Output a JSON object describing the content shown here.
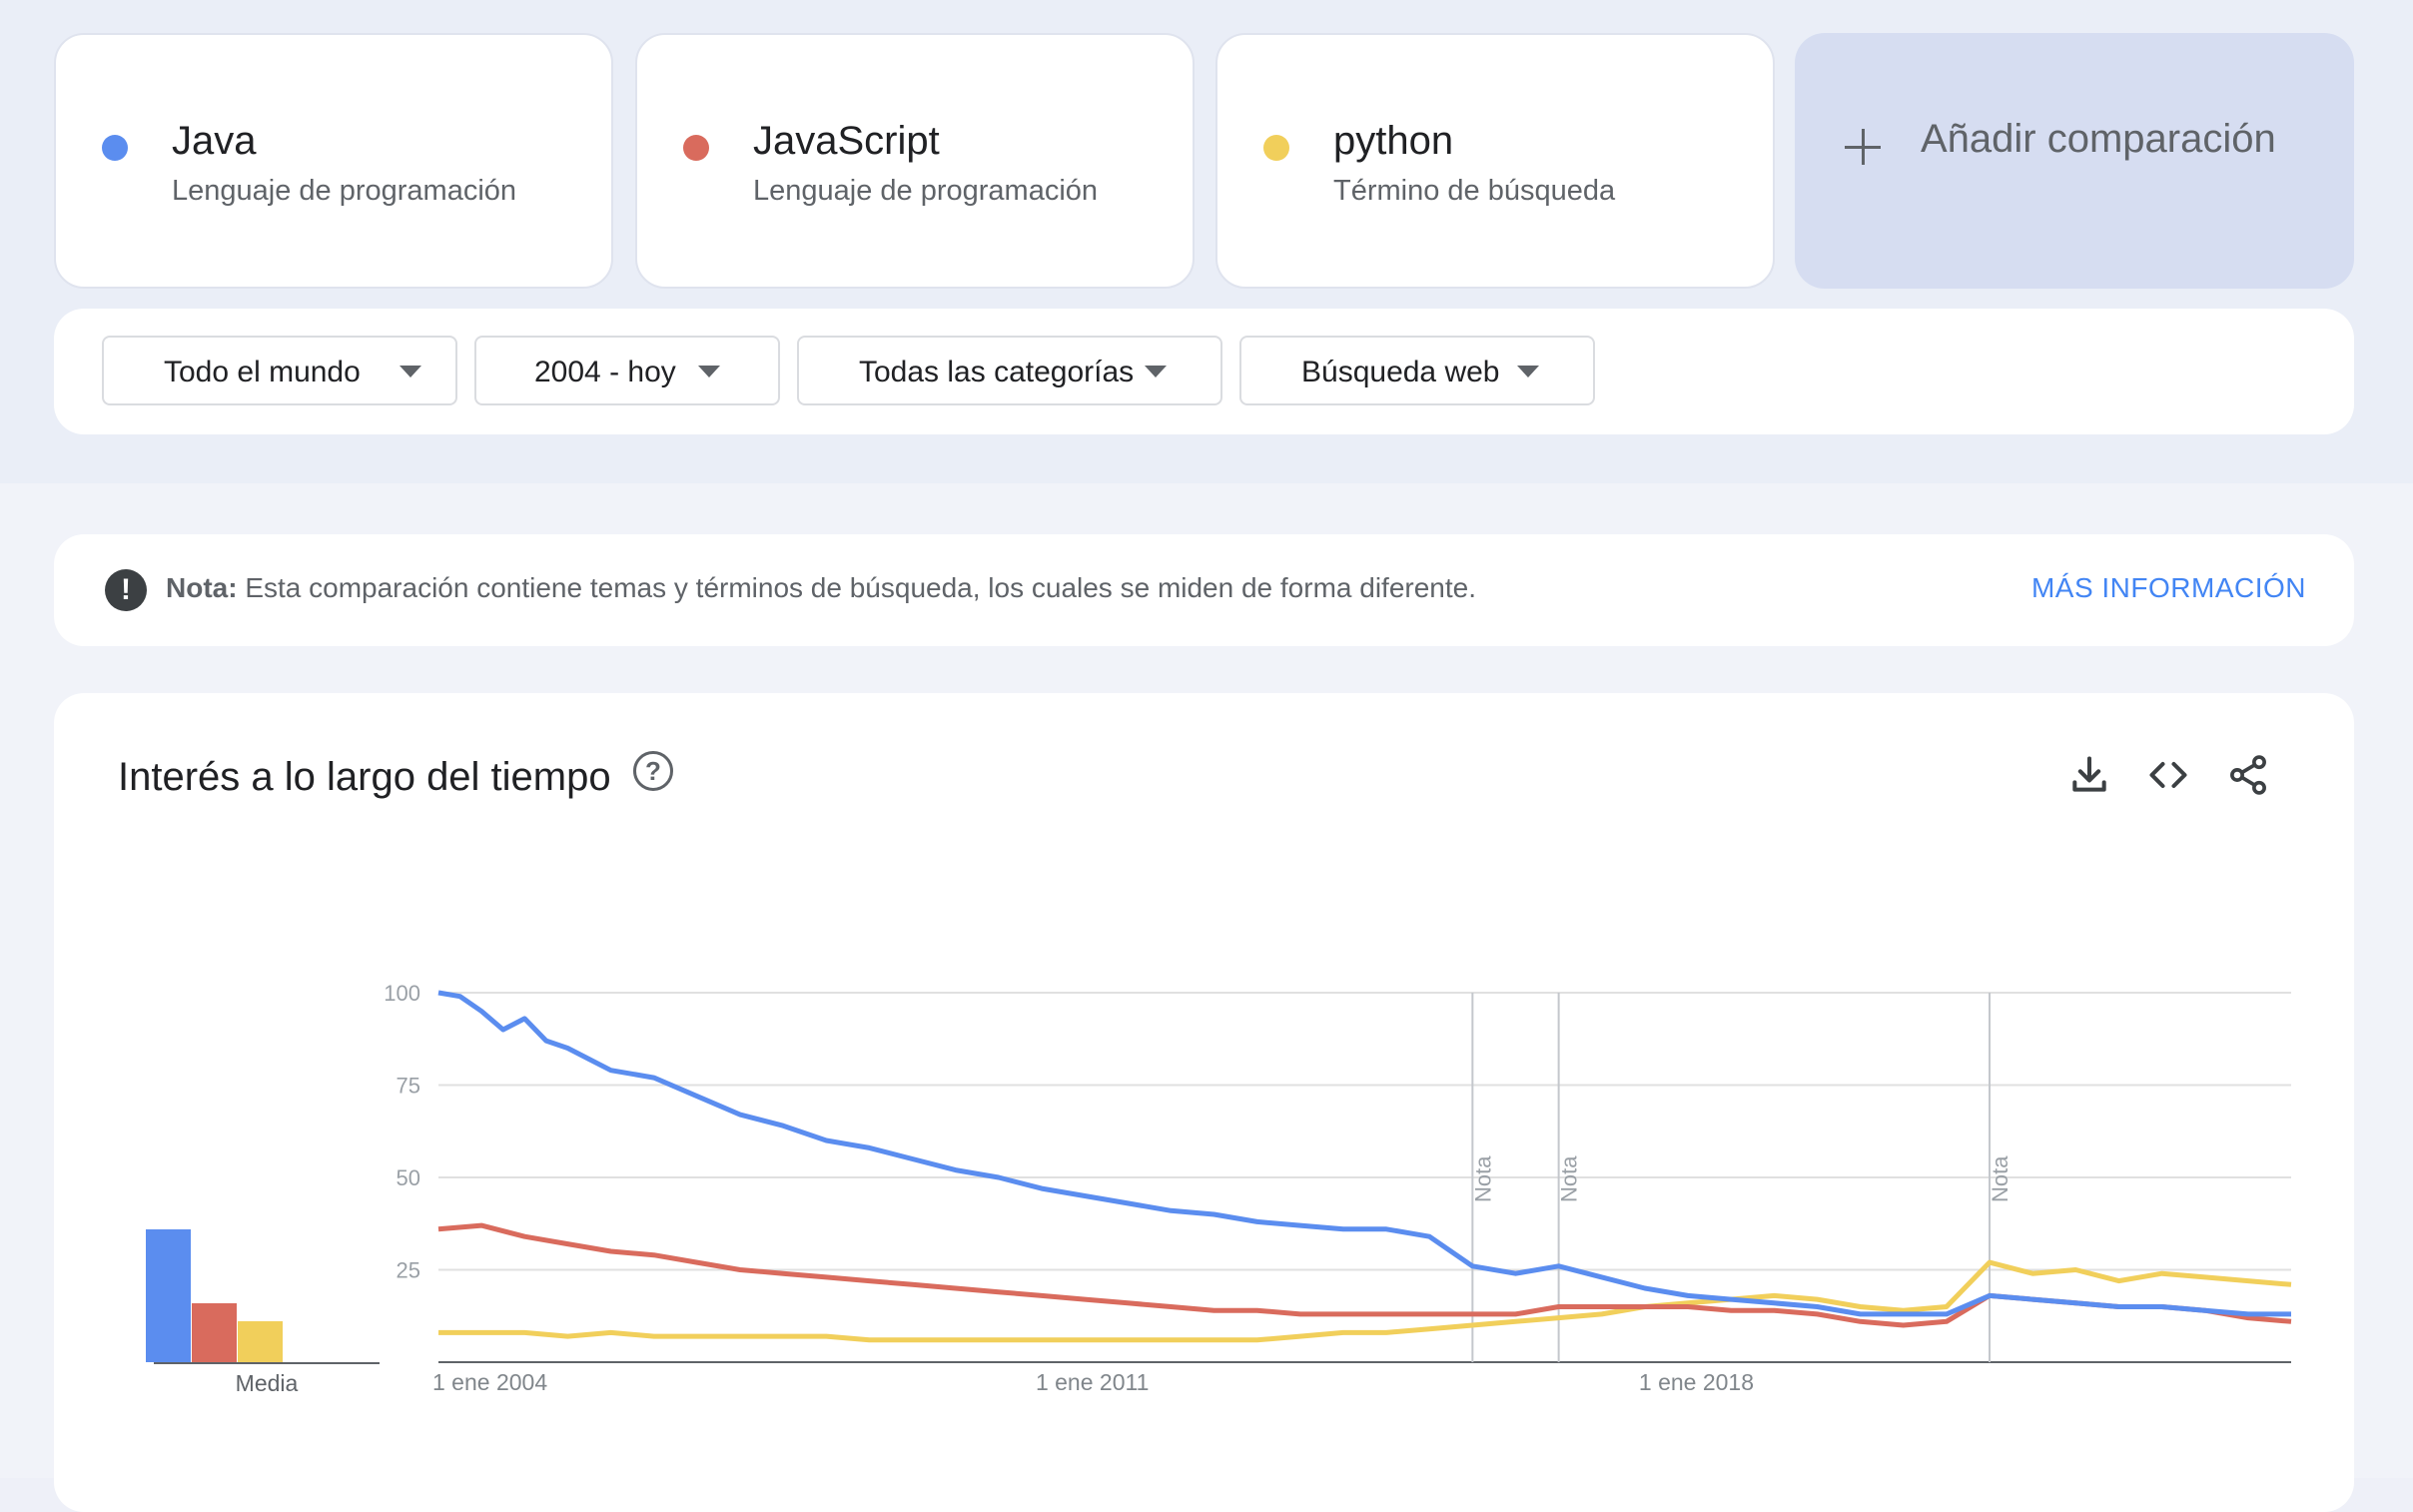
{
  "terms": [
    {
      "name": "Java",
      "subtitle": "Lenguaje de programación",
      "color": "#5b8def"
    },
    {
      "name": "JavaScript",
      "subtitle": "Lenguaje de programación",
      "color": "#d96b5d"
    },
    {
      "name": "python",
      "subtitle": "Término de búsqueda",
      "color": "#f1cf5b"
    }
  ],
  "add_comparison": {
    "label": "Añadir comparación",
    "icon": "plus-icon"
  },
  "filters": {
    "region": "Todo el mundo",
    "period": "2004 - hoy",
    "category": "Todas las categorías",
    "search_type": "Búsqueda web"
  },
  "note": {
    "label": "Nota:",
    "text": "Esta comparación contiene temas y términos de búsqueda, los cuales se miden de forma diferente.",
    "link": "MÁS INFORMACIÓN",
    "icon": "exclamation-icon"
  },
  "chart_panel": {
    "title": "Interés a lo largo del tiempo",
    "icons": [
      "help-icon",
      "download-icon",
      "embed-code-icon",
      "share-icon"
    ]
  },
  "chart_data": {
    "type": "line",
    "x_ticks": [
      "1 ene 2004",
      "1 ene 2011",
      "1 ene 2018"
    ],
    "y_ticks": [
      100,
      75,
      50,
      25
    ],
    "ylim": [
      0,
      100
    ],
    "xlim": [
      2004.0,
      2025.5
    ],
    "grid": true,
    "note_label": "Nota",
    "notes_at": [
      2016.0,
      2017.0,
      2022.0
    ],
    "average_label": "Media",
    "averages": [
      36,
      16,
      11
    ],
    "series": [
      {
        "name": "Java",
        "color": "#5b8def",
        "points": [
          [
            2004.0,
            100
          ],
          [
            2004.25,
            99
          ],
          [
            2004.5,
            95
          ],
          [
            2004.75,
            90
          ],
          [
            2005.0,
            93
          ],
          [
            2005.25,
            87
          ],
          [
            2005.5,
            85
          ],
          [
            2005.75,
            82
          ],
          [
            2006.0,
            79
          ],
          [
            2006.5,
            77
          ],
          [
            2007.0,
            72
          ],
          [
            2007.5,
            67
          ],
          [
            2008.0,
            64
          ],
          [
            2008.5,
            60
          ],
          [
            2009.0,
            58
          ],
          [
            2009.5,
            55
          ],
          [
            2010.0,
            52
          ],
          [
            2010.5,
            50
          ],
          [
            2011.0,
            47
          ],
          [
            2011.5,
            45
          ],
          [
            2012.0,
            43
          ],
          [
            2012.5,
            41
          ],
          [
            2013.0,
            40
          ],
          [
            2013.5,
            38
          ],
          [
            2014.0,
            37
          ],
          [
            2014.5,
            36
          ],
          [
            2015.0,
            36
          ],
          [
            2015.5,
            34
          ],
          [
            2016.0,
            26
          ],
          [
            2016.5,
            24
          ],
          [
            2017.0,
            26
          ],
          [
            2017.5,
            23
          ],
          [
            2018.0,
            20
          ],
          [
            2018.5,
            18
          ],
          [
            2019.0,
            17
          ],
          [
            2019.5,
            16
          ],
          [
            2020.0,
            15
          ],
          [
            2020.5,
            13
          ],
          [
            2021.0,
            13
          ],
          [
            2021.5,
            13
          ],
          [
            2022.0,
            18
          ],
          [
            2022.5,
            17
          ],
          [
            2023.0,
            16
          ],
          [
            2023.5,
            15
          ],
          [
            2024.0,
            15
          ],
          [
            2024.5,
            14
          ],
          [
            2025.0,
            13
          ],
          [
            2025.5,
            13
          ]
        ]
      },
      {
        "name": "JavaScript",
        "color": "#d96b5d",
        "points": [
          [
            2004.0,
            36
          ],
          [
            2004.5,
            37
          ],
          [
            2005.0,
            34
          ],
          [
            2005.5,
            32
          ],
          [
            2006.0,
            30
          ],
          [
            2006.5,
            29
          ],
          [
            2007.0,
            27
          ],
          [
            2007.5,
            25
          ],
          [
            2008.0,
            24
          ],
          [
            2008.5,
            23
          ],
          [
            2009.0,
            22
          ],
          [
            2009.5,
            21
          ],
          [
            2010.0,
            20
          ],
          [
            2010.5,
            19
          ],
          [
            2011.0,
            18
          ],
          [
            2011.5,
            17
          ],
          [
            2012.0,
            16
          ],
          [
            2012.5,
            15
          ],
          [
            2013.0,
            14
          ],
          [
            2013.5,
            14
          ],
          [
            2014.0,
            13
          ],
          [
            2014.5,
            13
          ],
          [
            2015.0,
            13
          ],
          [
            2015.5,
            13
          ],
          [
            2016.0,
            13
          ],
          [
            2016.5,
            13
          ],
          [
            2017.0,
            15
          ],
          [
            2017.5,
            15
          ],
          [
            2018.0,
            15
          ],
          [
            2018.5,
            15
          ],
          [
            2019.0,
            14
          ],
          [
            2019.5,
            14
          ],
          [
            2020.0,
            13
          ],
          [
            2020.5,
            11
          ],
          [
            2021.0,
            10
          ],
          [
            2021.5,
            11
          ],
          [
            2022.0,
            18
          ],
          [
            2022.5,
            17
          ],
          [
            2023.0,
            16
          ],
          [
            2023.5,
            15
          ],
          [
            2024.0,
            15
          ],
          [
            2024.5,
            14
          ],
          [
            2025.0,
            12
          ],
          [
            2025.5,
            11
          ]
        ]
      },
      {
        "name": "python",
        "color": "#f1cf5b",
        "points": [
          [
            2004.0,
            8
          ],
          [
            2004.5,
            8
          ],
          [
            2005.0,
            8
          ],
          [
            2005.5,
            7
          ],
          [
            2006.0,
            8
          ],
          [
            2006.5,
            7
          ],
          [
            2007.0,
            7
          ],
          [
            2007.5,
            7
          ],
          [
            2008.0,
            7
          ],
          [
            2008.5,
            7
          ],
          [
            2009.0,
            6
          ],
          [
            2009.5,
            6
          ],
          [
            2010.0,
            6
          ],
          [
            2010.5,
            6
          ],
          [
            2011.0,
            6
          ],
          [
            2011.5,
            6
          ],
          [
            2012.0,
            6
          ],
          [
            2012.5,
            6
          ],
          [
            2013.0,
            6
          ],
          [
            2013.5,
            6
          ],
          [
            2014.0,
            7
          ],
          [
            2014.5,
            8
          ],
          [
            2015.0,
            8
          ],
          [
            2015.5,
            9
          ],
          [
            2016.0,
            10
          ],
          [
            2016.5,
            11
          ],
          [
            2017.0,
            12
          ],
          [
            2017.5,
            13
          ],
          [
            2018.0,
            15
          ],
          [
            2018.5,
            16
          ],
          [
            2019.0,
            17
          ],
          [
            2019.5,
            18
          ],
          [
            2020.0,
            17
          ],
          [
            2020.5,
            15
          ],
          [
            2021.0,
            14
          ],
          [
            2021.5,
            15
          ],
          [
            2022.0,
            27
          ],
          [
            2022.5,
            24
          ],
          [
            2023.0,
            25
          ],
          [
            2023.5,
            22
          ],
          [
            2024.0,
            24
          ],
          [
            2024.5,
            23
          ],
          [
            2025.0,
            22
          ],
          [
            2025.5,
            21
          ]
        ]
      }
    ]
  }
}
